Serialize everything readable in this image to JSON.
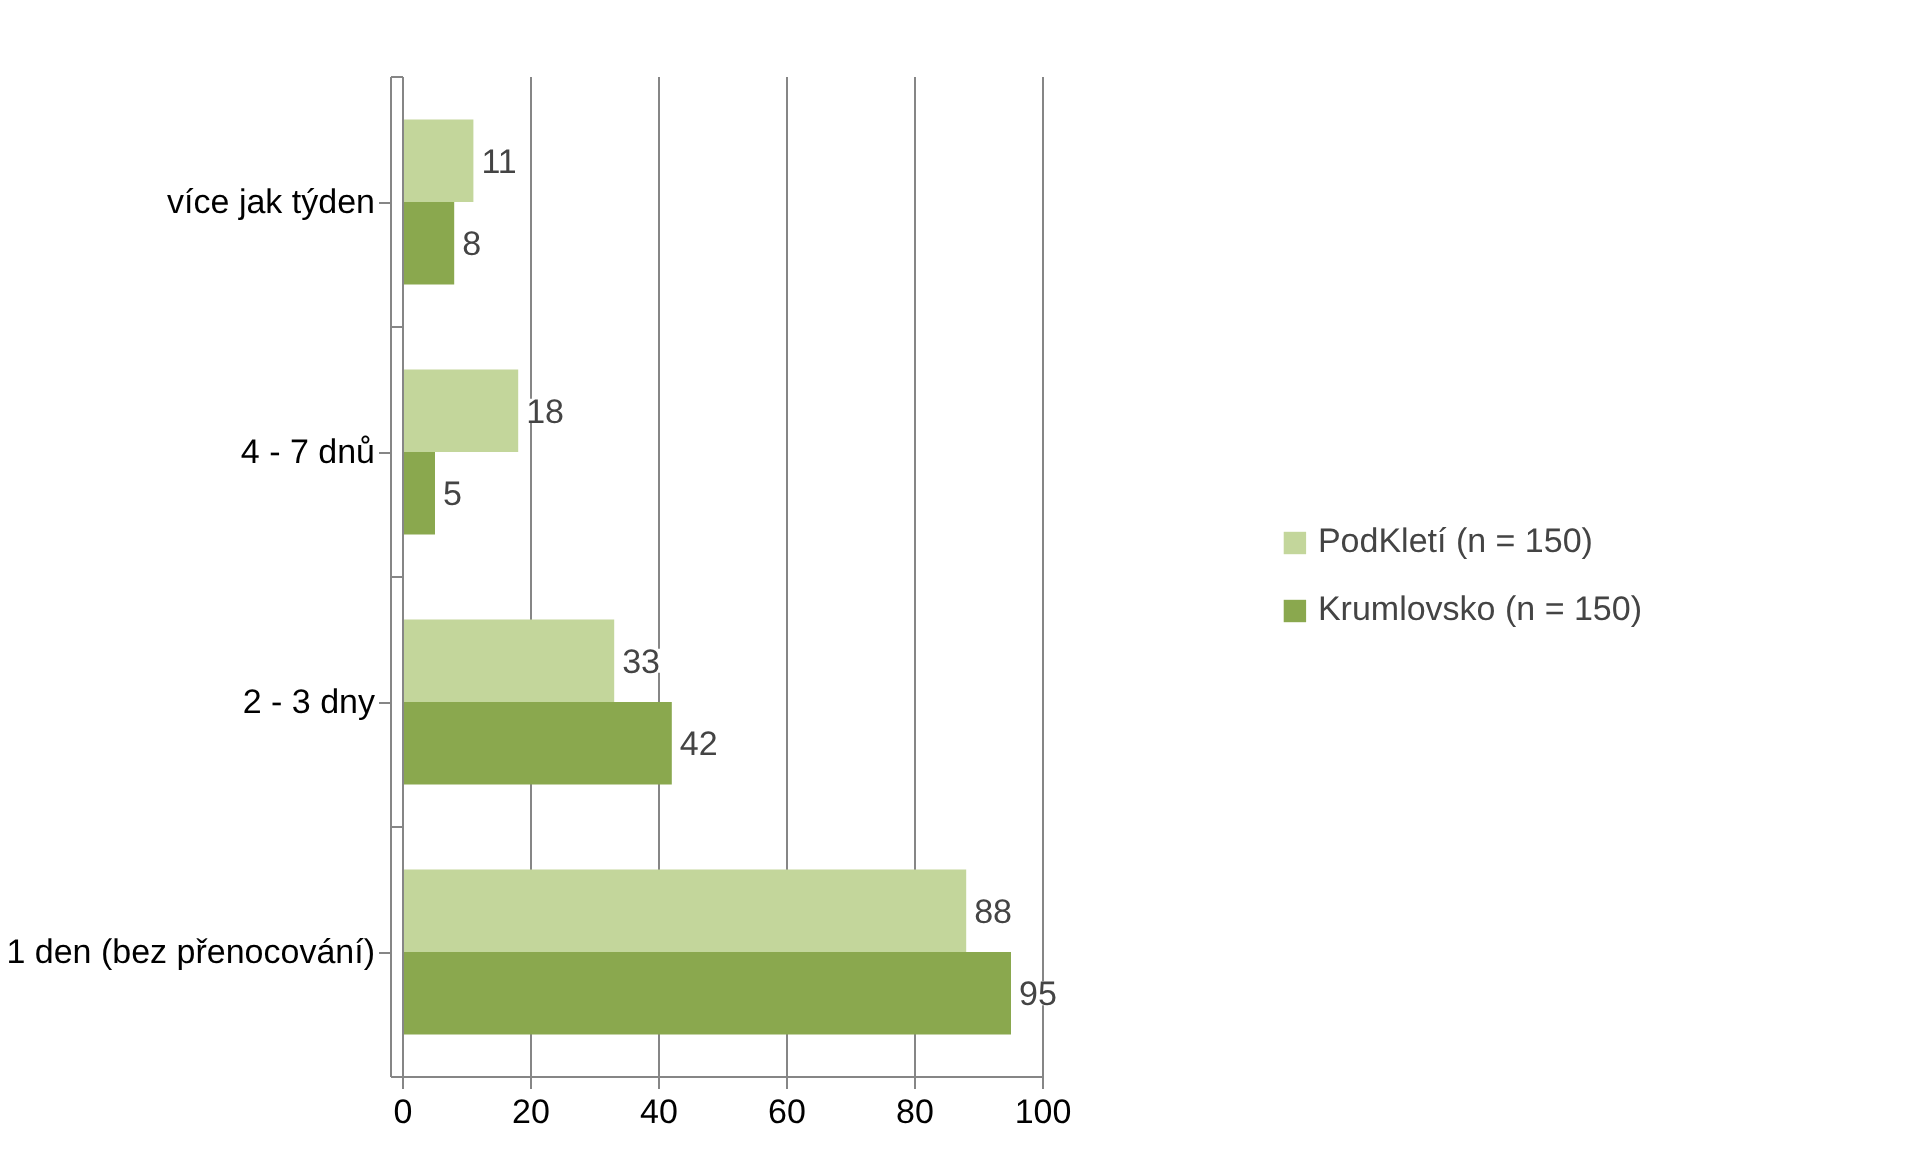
{
  "chart_data": {
    "type": "bar",
    "orientation": "horizontal",
    "categories": [
      "více jak týden",
      "4 - 7 dnů",
      "2 - 3 dny",
      "1 den (bez přenocování)"
    ],
    "series": [
      {
        "name": "PodKletí (n = 150)",
        "color": "#c3d69b",
        "values": [
          11,
          18,
          33,
          88
        ]
      },
      {
        "name": "Krumlovsko (n = 150)",
        "color": "#8aa84e",
        "values": [
          8,
          5,
          42,
          95
        ]
      }
    ],
    "xlim": [
      0,
      100
    ],
    "xticks": [
      0,
      20,
      40,
      60,
      80,
      100
    ],
    "grid": "x",
    "legend": "right",
    "data_labels": true
  }
}
